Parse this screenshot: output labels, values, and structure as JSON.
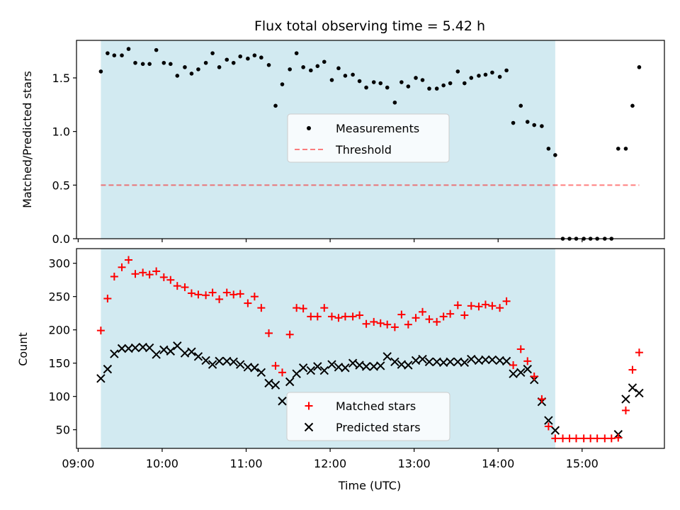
{
  "title": "Flux total observing time = 5.42 h",
  "colors": {
    "observing_band": "#add8e6",
    "measurements": "#000000",
    "threshold": "#ff0000",
    "matched": "#ff0000",
    "predicted": "#000000"
  },
  "x_axis": {
    "label": "Time (UTC)",
    "range_hours": [
      8.98,
      15.98
    ],
    "ticks": [
      {
        "value": 9,
        "label": "09:00"
      },
      {
        "value": 10,
        "label": "10:00"
      },
      {
        "value": 11,
        "label": "11:00"
      },
      {
        "value": 12,
        "label": "12:00"
      },
      {
        "value": 13,
        "label": "13:00"
      },
      {
        "value": 14,
        "label": "14:00"
      },
      {
        "value": 15,
        "label": "15:00"
      }
    ]
  },
  "observing_window_hours": [
    9.27,
    14.68
  ],
  "chart_data": [
    {
      "type": "scatter",
      "title": "Flux total observing time = 5.42 h",
      "ylabel": "Matched/Predicted stars",
      "ylim": [
        0,
        1.85
      ],
      "yticks": [
        {
          "value": 0,
          "label": "0.0"
        },
        {
          "value": 0.5,
          "label": "0.5"
        },
        {
          "value": 1.0,
          "label": "1.0"
        },
        {
          "value": 1.5,
          "label": "1.5"
        }
      ],
      "legend_position": "center",
      "legend": {
        "measurements": "Measurements",
        "threshold": "Threshold"
      },
      "threshold": {
        "value": 0.5,
        "x_range": [
          9.27,
          15.68
        ]
      },
      "series": [
        {
          "name": "Measurements",
          "x": [
            9.27,
            9.35,
            9.43,
            9.52,
            9.6,
            9.68,
            9.77,
            9.85,
            9.93,
            10.02,
            10.1,
            10.18,
            10.27,
            10.35,
            10.43,
            10.52,
            10.6,
            10.68,
            10.77,
            10.85,
            10.93,
            11.02,
            11.1,
            11.18,
            11.27,
            11.35,
            11.43,
            11.52,
            11.6,
            11.68,
            11.77,
            11.85,
            11.93,
            12.02,
            12.1,
            12.18,
            12.27,
            12.35,
            12.43,
            12.52,
            12.6,
            12.68,
            12.77,
            12.85,
            12.93,
            13.02,
            13.1,
            13.18,
            13.27,
            13.35,
            13.43,
            13.52,
            13.6,
            13.68,
            13.77,
            13.85,
            13.93,
            14.02,
            14.1,
            14.18,
            14.27,
            14.35,
            14.43,
            14.52,
            14.6,
            14.68,
            14.77,
            14.85,
            14.93,
            15.02,
            15.1,
            15.18,
            15.27,
            15.35,
            15.43,
            15.52,
            15.6,
            15.68
          ],
          "values": [
            1.56,
            1.73,
            1.71,
            1.71,
            1.77,
            1.64,
            1.63,
            1.63,
            1.76,
            1.64,
            1.63,
            1.52,
            1.6,
            1.54,
            1.58,
            1.64,
            1.73,
            1.6,
            1.67,
            1.64,
            1.7,
            1.68,
            1.71,
            1.69,
            1.62,
            1.24,
            1.44,
            1.58,
            1.73,
            1.6,
            1.57,
            1.61,
            1.65,
            1.48,
            1.59,
            1.52,
            1.53,
            1.47,
            1.41,
            1.46,
            1.45,
            1.41,
            1.27,
            1.46,
            1.42,
            1.5,
            1.48,
            1.4,
            1.4,
            1.43,
            1.45,
            1.56,
            1.45,
            1.5,
            1.52,
            1.53,
            1.55,
            1.51,
            1.57,
            1.08,
            1.24,
            1.09,
            1.06,
            1.05,
            0.84,
            0.78,
            0.0,
            0.0,
            0.0,
            0.0,
            0.0,
            0.0,
            0.0,
            0.0,
            0.84,
            0.84,
            1.24,
            1.6
          ]
        }
      ]
    },
    {
      "type": "scatter",
      "xlabel": "Time (UTC)",
      "ylabel": "Count",
      "ylim": [
        22,
        322
      ],
      "yticks": [
        {
          "value": 50,
          "label": "50"
        },
        {
          "value": 100,
          "label": "100"
        },
        {
          "value": 150,
          "label": "150"
        },
        {
          "value": 200,
          "label": "200"
        },
        {
          "value": 250,
          "label": "250"
        },
        {
          "value": 300,
          "label": "300"
        }
      ],
      "legend_position": "bottom-center",
      "legend": {
        "matched": "Matched stars",
        "predicted": "Predicted stars"
      },
      "series": [
        {
          "name": "Matched stars",
          "x": [
            9.27,
            9.35,
            9.43,
            9.52,
            9.6,
            9.68,
            9.77,
            9.85,
            9.93,
            10.02,
            10.1,
            10.18,
            10.27,
            10.35,
            10.43,
            10.52,
            10.6,
            10.68,
            10.77,
            10.85,
            10.93,
            11.02,
            11.1,
            11.18,
            11.27,
            11.35,
            11.43,
            11.52,
            11.6,
            11.68,
            11.77,
            11.85,
            11.93,
            12.02,
            12.1,
            12.18,
            12.27,
            12.35,
            12.43,
            12.52,
            12.6,
            12.68,
            12.77,
            12.85,
            12.93,
            13.02,
            13.1,
            13.18,
            13.27,
            13.35,
            13.43,
            13.52,
            13.6,
            13.68,
            13.77,
            13.85,
            13.93,
            14.02,
            14.1,
            14.18,
            14.27,
            14.35,
            14.43,
            14.52,
            14.6,
            14.68,
            14.77,
            14.85,
            14.93,
            15.02,
            15.1,
            15.18,
            15.27,
            15.35,
            15.43,
            15.52,
            15.6,
            15.68
          ],
          "values": [
            199,
            247,
            280,
            294,
            305,
            284,
            286,
            283,
            288,
            279,
            275,
            266,
            264,
            255,
            253,
            252,
            256,
            246,
            256,
            253,
            254,
            240,
            250,
            233,
            195,
            146,
            136,
            193,
            233,
            232,
            220,
            220,
            233,
            220,
            218,
            220,
            220,
            222,
            209,
            212,
            210,
            208,
            204,
            223,
            208,
            218,
            227,
            216,
            212,
            220,
            224,
            237,
            222,
            236,
            235,
            238,
            236,
            233,
            243,
            147,
            171,
            153,
            130,
            96,
            55,
            37,
            37,
            37,
            37,
            37,
            37,
            37,
            37,
            37,
            38,
            79,
            140,
            166
          ]
        },
        {
          "name": "Predicted stars",
          "x": [
            9.27,
            9.35,
            9.43,
            9.52,
            9.6,
            9.68,
            9.77,
            9.85,
            9.93,
            10.02,
            10.1,
            10.18,
            10.27,
            10.35,
            10.43,
            10.52,
            10.6,
            10.68,
            10.77,
            10.85,
            10.93,
            11.02,
            11.1,
            11.18,
            11.27,
            11.35,
            11.43,
            11.52,
            11.6,
            11.68,
            11.77,
            11.85,
            11.93,
            12.02,
            12.1,
            12.18,
            12.27,
            12.35,
            12.43,
            12.52,
            12.6,
            12.68,
            12.77,
            12.85,
            12.93,
            13.02,
            13.1,
            13.18,
            13.27,
            13.35,
            13.43,
            13.52,
            13.6,
            13.68,
            13.77,
            13.85,
            13.93,
            14.02,
            14.1,
            14.18,
            14.27,
            14.35,
            14.43,
            14.52,
            14.6,
            14.68,
            15.43,
            15.52,
            15.6,
            15.68
          ],
          "values": [
            127,
            141,
            164,
            172,
            172,
            173,
            174,
            173,
            163,
            170,
            168,
            176,
            165,
            167,
            160,
            154,
            148,
            153,
            153,
            152,
            148,
            144,
            143,
            136,
            120,
            117,
            93,
            122,
            134,
            143,
            139,
            145,
            139,
            148,
            144,
            143,
            150,
            147,
            145,
            145,
            146,
            160,
            152,
            148,
            147,
            154,
            156,
            152,
            152,
            151,
            152,
            152,
            151,
            156,
            154,
            155,
            155,
            154,
            153,
            134,
            136,
            141,
            125,
            92,
            64,
            49,
            43,
            96,
            113,
            105
          ]
        }
      ]
    }
  ]
}
